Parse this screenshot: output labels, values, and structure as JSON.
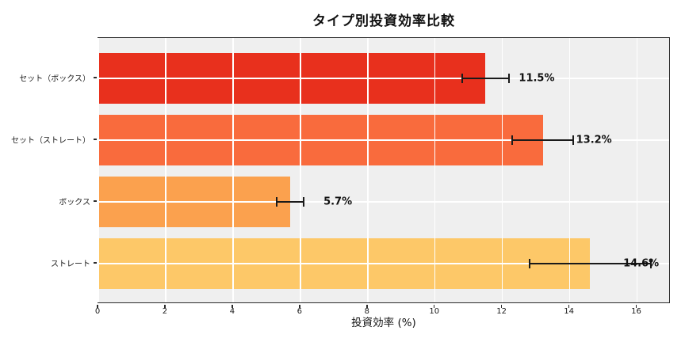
{
  "chart_data": {
    "type": "bar",
    "orientation": "horizontal",
    "title": "タイプ別投資効率比較",
    "xlabel": "投資効率 (%)",
    "ylabel": "",
    "categories": [
      "セット（ボックス）",
      "セット（ストレート）",
      "ボックス",
      "ストレート"
    ],
    "values": [
      11.5,
      13.2,
      5.7,
      14.6
    ],
    "errors": [
      0.7,
      0.9,
      0.4,
      1.8
    ],
    "value_labels": [
      "11.5%",
      "13.2%",
      "5.7%",
      "14.6%"
    ],
    "bar_colors": [
      "#e8301d",
      "#f96b3d",
      "#fba14e",
      "#fdc868"
    ],
    "xlim": [
      0,
      17
    ],
    "xticks": [
      0,
      2,
      4,
      6,
      8,
      10,
      12,
      14,
      16
    ],
    "xtick_labels": [
      "0",
      "2",
      "4",
      "6",
      "8",
      "10",
      "12",
      "14",
      "16"
    ],
    "grid": true,
    "grid_color": "#ffffff",
    "plot_background": "#efefef",
    "spine_color": "#2a2a2a",
    "error_bar_color": "#1a1a1a",
    "legend": null
  }
}
